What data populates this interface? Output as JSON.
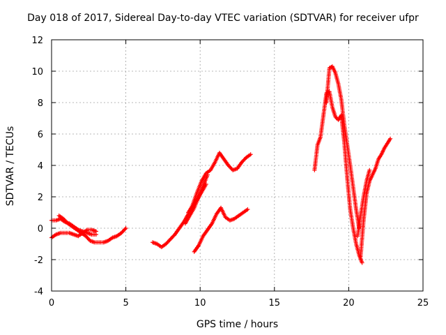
{
  "chart_data": {
    "type": "scatter",
    "title": "Day 018 of 2017, Sidereal Day-to-day VTEC variation (SDTVAR) for receiver ufpr",
    "xlabel": "GPS time / hours",
    "ylabel": "SDTVAR / TECUs",
    "xlim": [
      0,
      25
    ],
    "ylim": [
      -4,
      12
    ],
    "x_ticks": [
      "0",
      "5",
      "10",
      "15",
      "20",
      "25"
    ],
    "y_ticks": [
      "-4",
      "-2",
      "0",
      "2",
      "4",
      "6",
      "8",
      "10",
      "12"
    ],
    "grid": true,
    "marker": "+",
    "color": "#ff0000",
    "series": [
      {
        "x": [
          0.0,
          0.3,
          0.6,
          0.9,
          1.2,
          1.5,
          1.8,
          2.1,
          2.4,
          2.7,
          3.0
        ],
        "y": [
          0.5,
          0.5,
          0.6,
          0.4,
          0.3,
          0.1,
          -0.1,
          -0.2,
          -0.3,
          -0.4,
          -0.4
        ]
      },
      {
        "x": [
          0.0,
          0.3,
          0.6,
          0.9,
          1.2,
          1.5,
          1.8,
          2.1,
          2.4,
          2.7,
          3.0
        ],
        "y": [
          -0.6,
          -0.4,
          -0.3,
          -0.3,
          -0.3,
          -0.4,
          -0.5,
          -0.3,
          -0.1,
          -0.1,
          -0.2
        ]
      },
      {
        "x": [
          0.5,
          0.8,
          1.1,
          1.4,
          1.7,
          2.0,
          2.3,
          2.6,
          2.9,
          3.2,
          3.5,
          3.8,
          4.1,
          4.4,
          4.7,
          5.0
        ],
        "y": [
          0.8,
          0.6,
          0.3,
          0.1,
          -0.1,
          -0.3,
          -0.5,
          -0.8,
          -0.9,
          -0.9,
          -0.9,
          -0.8,
          -0.6,
          -0.5,
          -0.3,
          0.0
        ]
      },
      {
        "x": [
          6.8,
          7.1,
          7.4,
          7.7,
          8.0,
          8.3,
          8.6,
          8.9,
          9.2,
          9.5,
          9.8,
          10.1,
          10.4,
          10.7,
          11.0,
          11.3,
          11.6,
          11.9,
          12.2,
          12.5,
          12.8,
          13.1,
          13.4
        ],
        "y": [
          -0.9,
          -1.0,
          -1.2,
          -1.0,
          -0.7,
          -0.4,
          0.0,
          0.4,
          0.9,
          1.5,
          2.3,
          3.0,
          3.5,
          3.7,
          4.2,
          4.8,
          4.4,
          4.0,
          3.7,
          3.8,
          4.2,
          4.5,
          4.7
        ]
      },
      {
        "x": [
          9.2,
          9.5,
          9.8,
          10.1,
          10.4
        ],
        "y": [
          1.0,
          1.4,
          1.8,
          2.3,
          2.8
        ]
      },
      {
        "x": [
          9.0,
          9.3,
          9.6,
          9.9,
          10.2,
          10.5
        ],
        "y": [
          0.3,
          0.8,
          1.3,
          2.0,
          2.7,
          3.4
        ]
      },
      {
        "x": [
          9.6,
          9.9,
          10.2,
          10.5,
          10.8,
          11.1,
          11.4,
          11.7,
          12.0,
          12.3,
          12.6,
          12.9,
          13.2
        ],
        "y": [
          -1.5,
          -1.1,
          -0.5,
          -0.1,
          0.3,
          0.9,
          1.3,
          0.7,
          0.5,
          0.6,
          0.8,
          1.0,
          1.2
        ]
      },
      {
        "x": [
          17.7,
          17.9,
          18.1,
          18.3,
          18.5,
          18.7,
          18.9,
          19.1,
          19.3,
          19.5,
          19.7,
          19.9,
          20.1,
          20.3,
          20.5,
          20.7,
          20.9
        ],
        "y": [
          3.7,
          5.3,
          5.8,
          7.2,
          8.6,
          8.7,
          7.7,
          7.1,
          6.9,
          7.2,
          5.5,
          3.2,
          1.2,
          0.0,
          -1.0,
          -1.7,
          -2.2
        ]
      },
      {
        "x": [
          18.5,
          18.7,
          18.9,
          19.1,
          19.3,
          19.5,
          19.7,
          19.9,
          20.1,
          20.3,
          20.5,
          20.7
        ],
        "y": [
          8.0,
          10.2,
          10.3,
          9.9,
          9.2,
          8.2,
          6.6,
          5.3,
          4.0,
          2.6,
          1.2,
          0.0
        ]
      },
      {
        "x": [
          20.8,
          21.0,
          21.2,
          21.4,
          21.6,
          21.8,
          22.0,
          22.2,
          22.4,
          22.6,
          22.8
        ],
        "y": [
          -1.8,
          0.5,
          2.2,
          3.0,
          3.4,
          3.8,
          4.4,
          4.7,
          5.1,
          5.4,
          5.7
        ]
      },
      {
        "x": [
          20.6,
          20.8,
          21.0,
          21.2,
          21.4
        ],
        "y": [
          -0.5,
          0.8,
          2.0,
          3.0,
          3.7
        ]
      }
    ]
  }
}
